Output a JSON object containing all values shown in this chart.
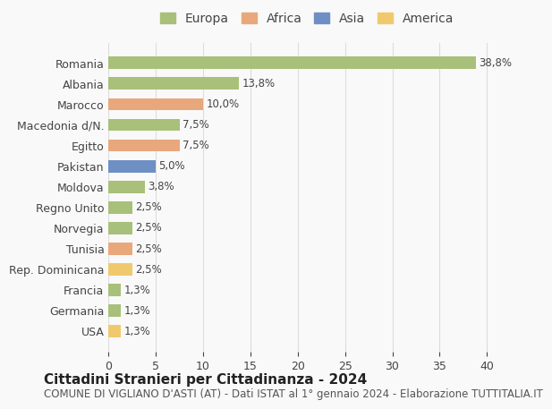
{
  "countries": [
    "Romania",
    "Albania",
    "Marocco",
    "Macedonia d/N.",
    "Egitto",
    "Pakistan",
    "Moldova",
    "Regno Unito",
    "Norvegia",
    "Tunisia",
    "Rep. Dominicana",
    "Francia",
    "Germania",
    "USA"
  ],
  "values": [
    38.8,
    13.8,
    10.0,
    7.5,
    7.5,
    5.0,
    3.8,
    2.5,
    2.5,
    2.5,
    2.5,
    1.3,
    1.3,
    1.3
  ],
  "labels": [
    "38,8%",
    "13,8%",
    "10,0%",
    "7,5%",
    "7,5%",
    "5,0%",
    "3,8%",
    "2,5%",
    "2,5%",
    "2,5%",
    "2,5%",
    "1,3%",
    "1,3%",
    "1,3%"
  ],
  "continents": [
    "Europa",
    "Europa",
    "Africa",
    "Europa",
    "Africa",
    "Asia",
    "Europa",
    "Europa",
    "Europa",
    "Africa",
    "America",
    "Europa",
    "Europa",
    "America"
  ],
  "colors": {
    "Europa": "#a8c07a",
    "Africa": "#e8a87c",
    "Asia": "#6e8fc4",
    "America": "#f0c96e"
  },
  "legend_order": [
    "Europa",
    "Africa",
    "Asia",
    "America"
  ],
  "title": "Cittadini Stranieri per Cittadinanza - 2024",
  "subtitle": "COMUNE DI VIGLIANO D'ASTI (AT) - Dati ISTAT al 1° gennaio 2024 - Elaborazione TUTTITALIA.IT",
  "xlim": [
    0,
    42
  ],
  "xticks": [
    0,
    5,
    10,
    15,
    20,
    25,
    30,
    35,
    40
  ],
  "background_color": "#f9f9f9",
  "grid_color": "#dddddd",
  "bar_height": 0.6,
  "title_fontsize": 11,
  "subtitle_fontsize": 8.5,
  "tick_fontsize": 9,
  "label_fontsize": 8.5,
  "legend_fontsize": 10
}
